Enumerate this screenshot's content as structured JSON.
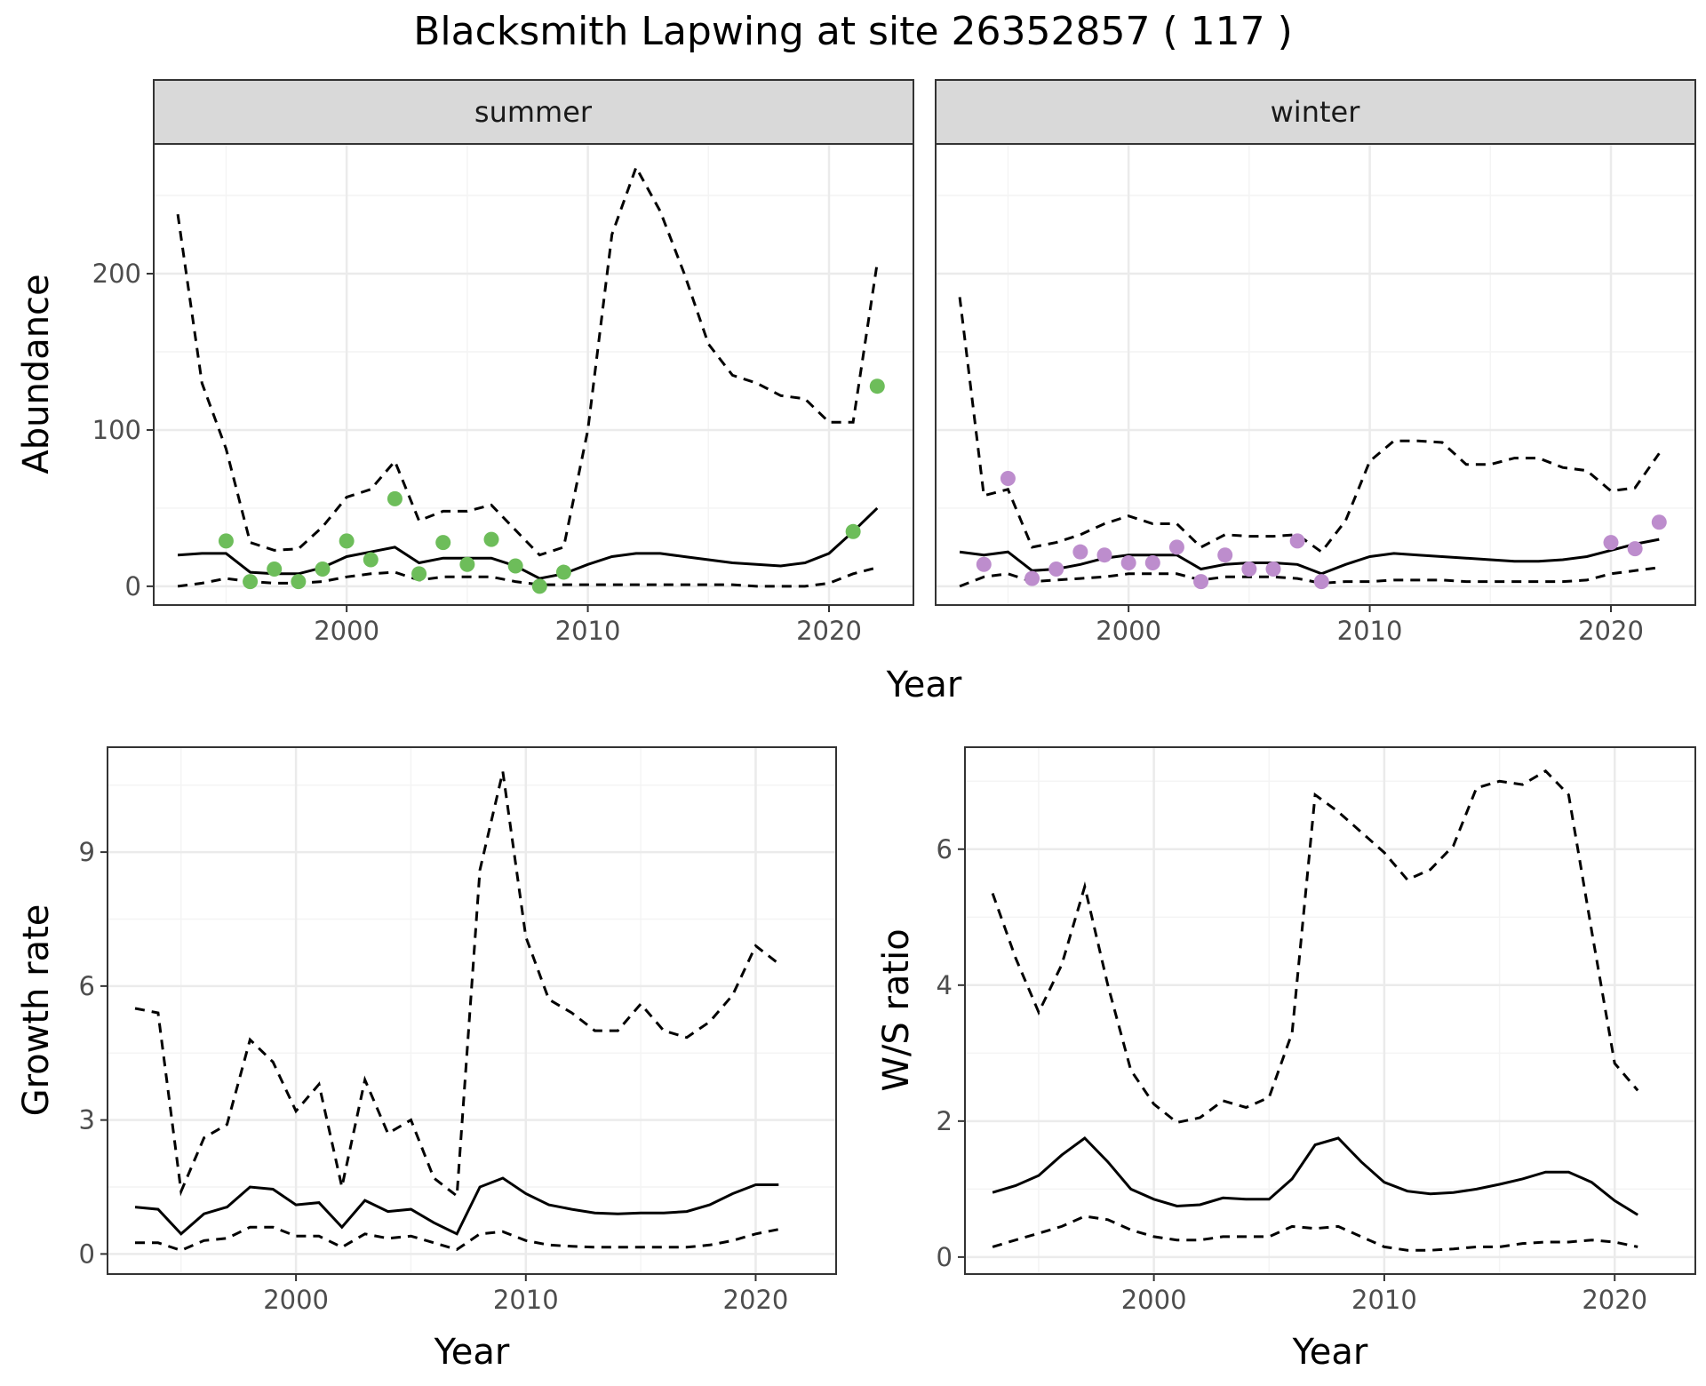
{
  "title": "Blacksmith Lapwing at site 26352857 ( 117 )",
  "colors": {
    "summer_points": "#6dbd5a",
    "winter_points": "#bd8dcd",
    "line": "#000000",
    "strip_fill": "#d9d9d9",
    "grid_major": "#ebebeb",
    "grid_minor": "#f4f4f4",
    "panel_border": "#333333"
  },
  "chart_data": [
    {
      "type": "line",
      "id": "abundance",
      "facets": [
        "summer",
        "winter"
      ],
      "xlabel": "Year",
      "ylabel": "Abundance",
      "xticks": [
        2000,
        2010,
        2020
      ],
      "yticks": [
        0,
        100,
        200
      ],
      "xlim": [
        1992,
        2023.5
      ],
      "ylim": [
        -12,
        283
      ],
      "grid": true,
      "panels": [
        {
          "facet": "summer",
          "x": [
            1993,
            1994,
            1995,
            1996,
            1997,
            1998,
            1999,
            2000,
            2001,
            2002,
            2003,
            2004,
            2005,
            2006,
            2007,
            2008,
            2009,
            2010,
            2011,
            2012,
            2013,
            2014,
            2015,
            2016,
            2017,
            2018,
            2019,
            2020,
            2021,
            2022
          ],
          "median": [
            20,
            21,
            21,
            9,
            8,
            8,
            12,
            19,
            22,
            25,
            15,
            18,
            18,
            18,
            13,
            5,
            8,
            14,
            19,
            21,
            21,
            19,
            17,
            15,
            14,
            13,
            15,
            21,
            35,
            50
          ],
          "lower": [
            0,
            2,
            5,
            3,
            2,
            2,
            3,
            6,
            8,
            9,
            4,
            6,
            6,
            6,
            3,
            1,
            1,
            1,
            1,
            1,
            1,
            1,
            1,
            1,
            0,
            0,
            0,
            2,
            8,
            12
          ],
          "upper": [
            238,
            130,
            88,
            28,
            23,
            24,
            38,
            57,
            62,
            80,
            42,
            48,
            48,
            52,
            36,
            20,
            25,
            100,
            225,
            268,
            240,
            200,
            155,
            135,
            130,
            122,
            120,
            105,
            105,
            207
          ],
          "points": {
            "x": [
              1995,
              1996,
              1997,
              1998,
              1999,
              2000,
              2001,
              2002,
              2003,
              2004,
              2005,
              2006,
              2007,
              2008,
              2009,
              2021,
              2022
            ],
            "y": [
              29,
              3,
              11,
              3,
              11,
              29,
              17,
              56,
              8,
              28,
              14,
              30,
              13,
              0,
              9,
              35,
              128
            ]
          }
        },
        {
          "facet": "winter",
          "x": [
            1993,
            1994,
            1995,
            1996,
            1997,
            1998,
            1999,
            2000,
            2001,
            2002,
            2003,
            2004,
            2005,
            2006,
            2007,
            2008,
            2009,
            2010,
            2011,
            2012,
            2013,
            2014,
            2015,
            2016,
            2017,
            2018,
            2019,
            2020,
            2021,
            2022
          ],
          "median": [
            22,
            20,
            22,
            10,
            11,
            14,
            18,
            20,
            20,
            20,
            11,
            14,
            15,
            15,
            14,
            8,
            14,
            19,
            21,
            20,
            19,
            18,
            17,
            16,
            16,
            17,
            19,
            23,
            27,
            30
          ],
          "lower": [
            0,
            6,
            8,
            3,
            4,
            5,
            6,
            8,
            8,
            8,
            4,
            6,
            6,
            6,
            5,
            2,
            3,
            3,
            4,
            4,
            4,
            3,
            3,
            3,
            3,
            3,
            4,
            8,
            10,
            12
          ],
          "upper": [
            185,
            58,
            62,
            25,
            28,
            33,
            40,
            45,
            40,
            40,
            25,
            33,
            32,
            32,
            33,
            22,
            42,
            80,
            93,
            93,
            92,
            78,
            78,
            82,
            82,
            76,
            74,
            61,
            63,
            85
          ],
          "points": {
            "x": [
              1994,
              1995,
              1996,
              1997,
              1998,
              1999,
              2000,
              2001,
              2002,
              2003,
              2004,
              2005,
              2006,
              2007,
              2008,
              2020,
              2021,
              2022
            ],
            "y": [
              14,
              69,
              5,
              11,
              22,
              20,
              15,
              15,
              25,
              3,
              20,
              11,
              11,
              29,
              3,
              28,
              24,
              41
            ]
          }
        }
      ]
    },
    {
      "type": "line",
      "id": "growth",
      "xlabel": "Year",
      "ylabel": "Growth rate",
      "xticks": [
        2000,
        2010,
        2020
      ],
      "yticks": [
        0,
        3,
        6,
        9
      ],
      "xlim": [
        1991.8,
        2023.5
      ],
      "ylim": [
        -0.45,
        11.35
      ],
      "grid": true,
      "x": [
        1993,
        1994,
        1995,
        1996,
        1997,
        1998,
        1999,
        2000,
        2001,
        2002,
        2003,
        2004,
        2005,
        2006,
        2007,
        2008,
        2009,
        2010,
        2011,
        2012,
        2013,
        2014,
        2015,
        2016,
        2017,
        2018,
        2019,
        2020,
        2021
      ],
      "median": [
        1.05,
        1.0,
        0.45,
        0.9,
        1.05,
        1.5,
        1.45,
        1.1,
        1.15,
        0.6,
        1.2,
        0.95,
        1.0,
        0.7,
        0.45,
        1.5,
        1.7,
        1.35,
        1.1,
        1.0,
        0.92,
        0.9,
        0.92,
        0.92,
        0.95,
        1.1,
        1.35,
        1.55,
        1.55
      ],
      "lower": [
        0.25,
        0.25,
        0.08,
        0.3,
        0.35,
        0.6,
        0.6,
        0.4,
        0.4,
        0.15,
        0.45,
        0.35,
        0.4,
        0.25,
        0.1,
        0.45,
        0.5,
        0.3,
        0.2,
        0.17,
        0.15,
        0.15,
        0.15,
        0.15,
        0.15,
        0.2,
        0.3,
        0.45,
        0.55
      ],
      "upper": [
        5.5,
        5.4,
        1.4,
        2.6,
        2.9,
        4.8,
        4.3,
        3.2,
        3.8,
        1.5,
        3.9,
        2.7,
        3.0,
        1.7,
        1.3,
        8.6,
        10.8,
        7.1,
        5.7,
        5.4,
        5.0,
        5.0,
        5.6,
        5.0,
        4.85,
        5.2,
        5.8,
        6.9,
        6.5
      ]
    },
    {
      "type": "line",
      "id": "ws_ratio",
      "xlabel": "Year",
      "ylabel": "W/S ratio",
      "xticks": [
        2000,
        2010,
        2020
      ],
      "yticks": [
        0,
        2,
        4,
        6
      ],
      "xlim": [
        1991.8,
        2023.5
      ],
      "ylim": [
        -0.25,
        7.5
      ],
      "grid": true,
      "x": [
        1993,
        1994,
        1995,
        1996,
        1997,
        1998,
        1999,
        2000,
        2001,
        2002,
        2003,
        2004,
        2005,
        2006,
        2007,
        2008,
        2009,
        2010,
        2011,
        2012,
        2013,
        2014,
        2015,
        2016,
        2017,
        2018,
        2019,
        2020,
        2021
      ],
      "median": [
        0.95,
        1.05,
        1.2,
        1.5,
        1.75,
        1.4,
        1.0,
        0.85,
        0.75,
        0.77,
        0.87,
        0.85,
        0.85,
        1.15,
        1.65,
        1.75,
        1.4,
        1.1,
        0.97,
        0.93,
        0.95,
        1.0,
        1.07,
        1.15,
        1.25,
        1.25,
        1.1,
        0.83,
        0.62
      ],
      "lower": [
        0.15,
        0.25,
        0.35,
        0.45,
        0.6,
        0.55,
        0.4,
        0.3,
        0.25,
        0.25,
        0.3,
        0.3,
        0.3,
        0.45,
        0.42,
        0.45,
        0.3,
        0.15,
        0.1,
        0.1,
        0.12,
        0.15,
        0.15,
        0.2,
        0.22,
        0.22,
        0.25,
        0.22,
        0.15
      ],
      "upper": [
        5.35,
        4.4,
        3.6,
        4.3,
        5.45,
        4.0,
        2.75,
        2.25,
        1.98,
        2.05,
        2.3,
        2.2,
        2.35,
        3.3,
        6.8,
        6.55,
        6.25,
        5.95,
        5.55,
        5.7,
        6.05,
        6.9,
        7.0,
        6.95,
        7.15,
        6.8,
        4.8,
        2.85,
        2.45
      ]
    }
  ]
}
